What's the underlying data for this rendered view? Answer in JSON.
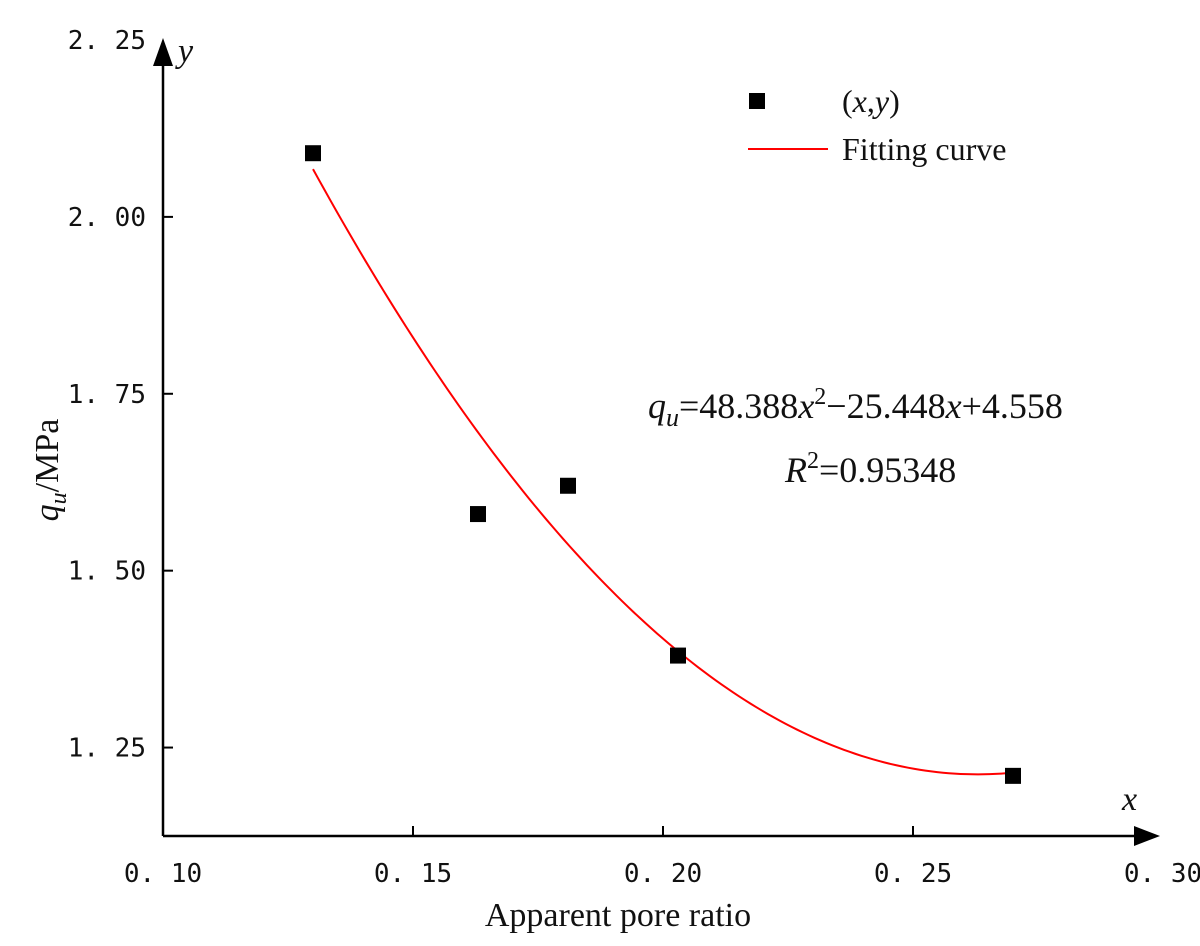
{
  "chart_data": {
    "type": "scatter",
    "title": "",
    "xlabel": "Apparent pore ratio",
    "ylabel_var": "q",
    "ylabel_sub": "u",
    "ylabel_unit": "/MPa",
    "x_axis_letter": "x",
    "y_axis_letter": "y",
    "xlim": [
      0.1,
      0.3
    ],
    "ylim": [
      1.125,
      2.25
    ],
    "x_ticks": [
      0.1,
      0.15,
      0.2,
      0.25,
      0.3
    ],
    "x_tick_labels": [
      "0. 10",
      "0. 15",
      "0. 20",
      "0. 25",
      "0. 30"
    ],
    "y_ticks": [
      1.25,
      1.5,
      1.75,
      2.0,
      2.25
    ],
    "y_tick_labels": [
      "1. 25",
      "1. 50",
      "1. 75",
      "2. 00",
      "2. 25"
    ],
    "grid": false,
    "series": [
      {
        "name": "(x,y)",
        "kind": "scatter",
        "marker": "square",
        "color": "#000000",
        "points": [
          {
            "x": 0.13,
            "y": 2.09
          },
          {
            "x": 0.163,
            "y": 1.58
          },
          {
            "x": 0.181,
            "y": 1.62
          },
          {
            "x": 0.203,
            "y": 1.38
          },
          {
            "x": 0.27,
            "y": 1.21
          }
        ]
      },
      {
        "name": "Fitting curve",
        "kind": "line",
        "color": "#ff0000",
        "coefficients": {
          "a": 48.388,
          "b": -25.448,
          "c": 4.558
        },
        "x_range": [
          0.13,
          0.27
        ]
      }
    ],
    "legend": {
      "position": "top-right",
      "entries": [
        {
          "label_open": "(",
          "label_x": "x",
          "label_comma": ",",
          "label_y": "y",
          "label_close": ")"
        },
        {
          "label": "Fitting curve"
        }
      ]
    },
    "annotation": {
      "eq_lhs_var": "q",
      "eq_lhs_sub": "u",
      "eq_t1": "=48.388",
      "eq_var1": "x",
      "eq_sup": "2",
      "eq_t2": "−25.448",
      "eq_var2": "x",
      "eq_t3": "+4.558",
      "r2_var": "R",
      "r2_sup": "2",
      "r2_value": "=0.95348"
    }
  }
}
